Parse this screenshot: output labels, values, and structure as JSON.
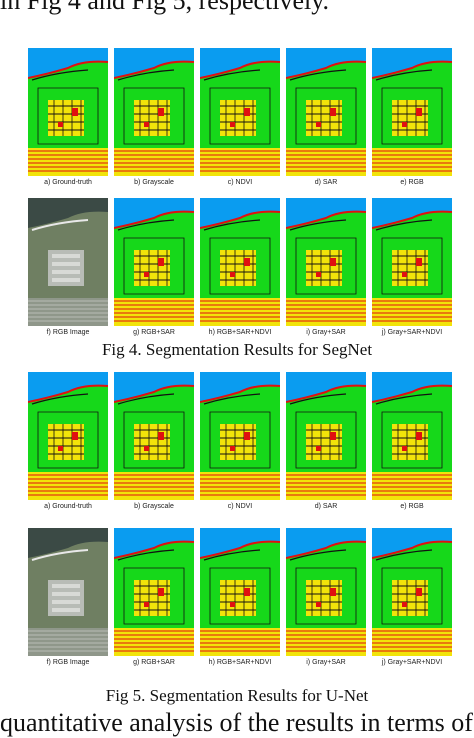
{
  "text_top": "in Fig 4 and Fig 5, respectively.",
  "text_bottom": "quantitative analysis of the results in terms of",
  "figures": [
    {
      "caption": "Fig 4. Segmentation Results for SegNet",
      "rows": [
        [
          "a) Ground-truth",
          "b) Grayscale",
          "c) NDVI",
          "d) SAR",
          "e) RGB"
        ],
        [
          "f) RGB Image",
          "g) RGB+SAR",
          "h) RGB+SAR+NDVI",
          "i) Gray+SAR",
          "j) Gray+SAR+NDVI"
        ]
      ]
    },
    {
      "caption": "Fig 5. Segmentation Results for U-Net",
      "rows": [
        [
          "a) Ground-truth",
          "b) Grayscale",
          "c) NDVI",
          "d) SAR",
          "e) RGB"
        ],
        [
          "f) RGB Image",
          "g) RGB+SAR",
          "h) RGB+SAR+NDVI",
          "i) Gray+SAR",
          "j) Gray+SAR+NDVI"
        ]
      ]
    }
  ],
  "colors": {
    "water": "#0a9cf0",
    "vegetation": "#16d81a",
    "urban": "#f2e40a",
    "building": "#e01010",
    "road": "#111111"
  }
}
